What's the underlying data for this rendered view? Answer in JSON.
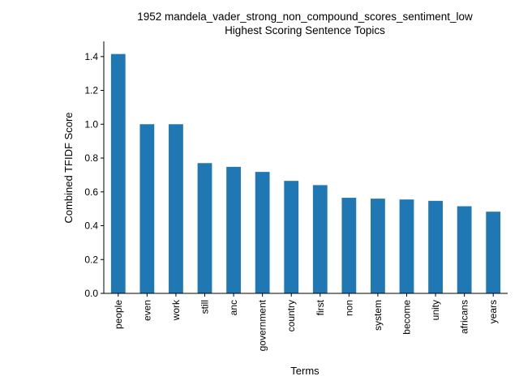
{
  "chart_data": {
    "type": "bar",
    "title": "1952 mandela_vader_strong_non_compound_scores_sentiment_low",
    "subtitle": "Highest Scoring Sentence Topics",
    "xlabel": "Terms",
    "ylabel": "Combined TFIDF Score",
    "categories": [
      "people",
      "even",
      "work",
      "still",
      "anc",
      "government",
      "country",
      "first",
      "non",
      "system",
      "become",
      "unity",
      "africans",
      "years"
    ],
    "values": [
      1.415,
      1.0,
      1.0,
      0.77,
      0.748,
      0.718,
      0.665,
      0.64,
      0.565,
      0.56,
      0.555,
      0.547,
      0.515,
      0.483
    ],
    "ylim": [
      0,
      1.49
    ],
    "yticks": [
      0.0,
      0.2,
      0.4,
      0.6,
      0.8,
      1.0,
      1.2,
      1.4
    ],
    "ytick_labels": [
      "0.0",
      "0.2",
      "0.4",
      "0.6",
      "0.8",
      "1.0",
      "1.2",
      "1.4"
    ],
    "grid": false,
    "bar_color": "#1f77b4"
  }
}
